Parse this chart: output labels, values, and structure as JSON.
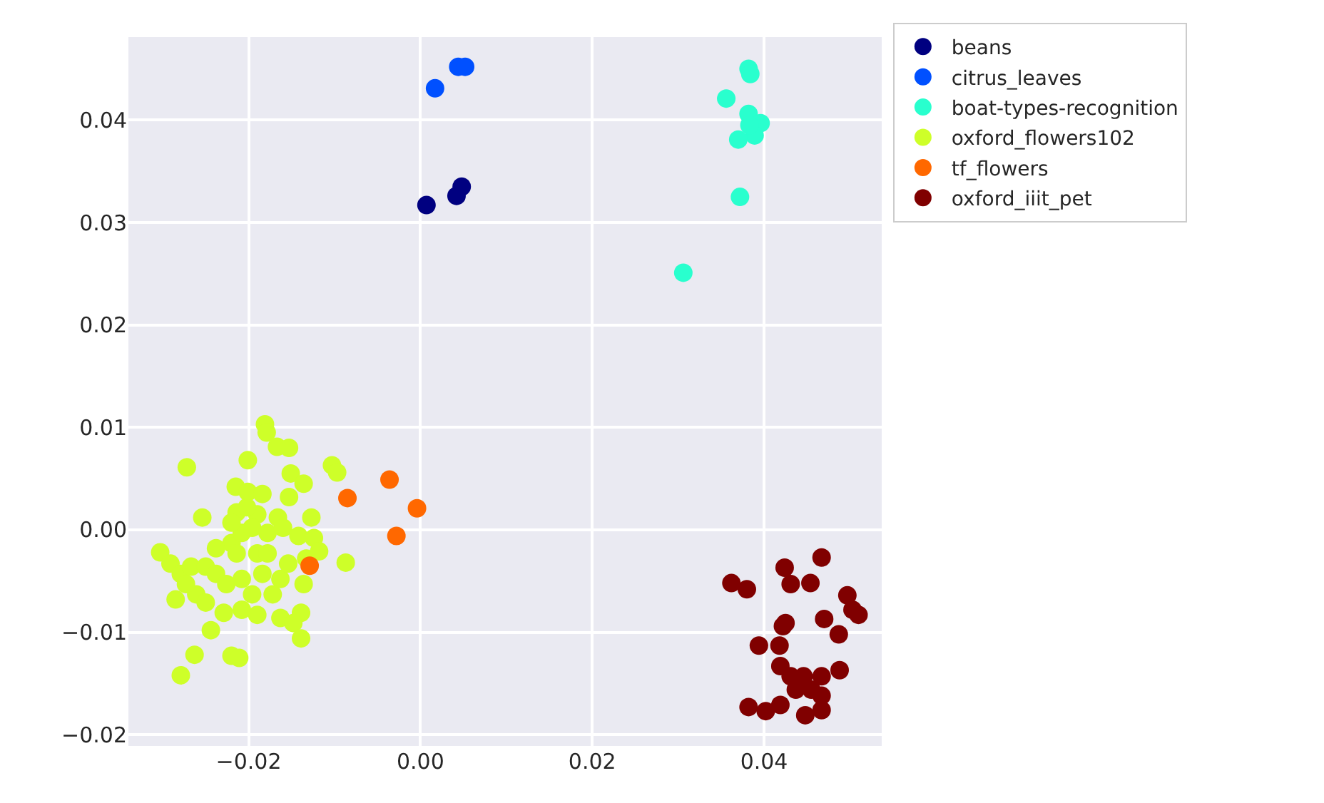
{
  "chart_data": {
    "type": "scatter",
    "xlim": [
      -0.034,
      0.0537
    ],
    "ylim": [
      -0.0211,
      0.0481
    ],
    "xticks": [
      {
        "value": -0.02,
        "label": "−0.02"
      },
      {
        "value": 0,
        "label": "0.00"
      },
      {
        "value": 0.02,
        "label": "0.02"
      },
      {
        "value": 0.04,
        "label": "0.04"
      }
    ],
    "yticks": [
      {
        "value": -0.02,
        "label": "−0.02"
      },
      {
        "value": -0.01,
        "label": "−0.01"
      },
      {
        "value": 0,
        "label": "0.00"
      },
      {
        "value": 0.01,
        "label": "0.01"
      },
      {
        "value": 0.02,
        "label": "0.02"
      },
      {
        "value": 0.03,
        "label": "0.03"
      },
      {
        "value": 0.04,
        "label": "0.04"
      }
    ],
    "grid": true,
    "legend": "top right",
    "marker": "circle",
    "series": [
      {
        "name": "beans",
        "color": "#000080",
        "x": [
          0.0007,
          0.0042,
          0.0048
        ],
        "values": [
          0.0317,
          0.0326,
          0.0335
        ]
      },
      {
        "name": "citrus_leaves",
        "color": "#0050ff",
        "x": [
          0.0017,
          0.0044,
          0.0052
        ],
        "values": [
          0.0431,
          0.0452,
          0.0452
        ]
      },
      {
        "name": "boat-types-recognition",
        "color": "#29ffce",
        "x": [
          0.0382,
          0.0384,
          0.0356,
          0.0382,
          0.0396,
          0.0389,
          0.037,
          0.0372,
          0.0306,
          0.0383
        ],
        "values": [
          0.045,
          0.0445,
          0.0421,
          0.0406,
          0.0397,
          0.0385,
          0.0381,
          0.0325,
          0.0251,
          0.0395
        ]
      },
      {
        "name": "oxford_flowers102",
        "color": "#ceff29",
        "x": [
          -0.0181,
          -0.0179,
          -0.0167,
          -0.0153,
          -0.0201,
          -0.0272,
          -0.0151,
          -0.0103,
          -0.0097,
          -0.0136,
          -0.0215,
          -0.0201,
          -0.0184,
          -0.0153,
          -0.0254,
          -0.0127,
          -0.0214,
          -0.019,
          -0.0166,
          -0.0303,
          -0.0291,
          -0.0279,
          -0.0267,
          -0.025,
          -0.0238,
          -0.022,
          -0.0208,
          -0.0196,
          -0.0178,
          -0.016,
          -0.0142,
          -0.0124,
          -0.0118,
          -0.0133,
          -0.0087,
          -0.0214,
          -0.019,
          -0.0226,
          -0.0208,
          -0.0184,
          -0.0163,
          -0.0136,
          -0.0285,
          -0.0261,
          -0.025,
          -0.0229,
          -0.0208,
          -0.019,
          -0.0163,
          -0.0139,
          -0.0148,
          -0.0244,
          -0.0139,
          -0.0263,
          -0.022,
          -0.0211,
          -0.0279,
          -0.0202,
          -0.022,
          -0.0178,
          -0.0238,
          -0.0273,
          -0.0196,
          -0.0172,
          -0.0154
        ],
        "values": [
          0.0103,
          0.0095,
          0.0081,
          0.008,
          0.0068,
          0.0061,
          0.0055,
          0.0063,
          0.0056,
          0.0045,
          0.0042,
          0.0037,
          0.0035,
          0.0032,
          0.0012,
          0.0012,
          0.0017,
          0.0015,
          0.0012,
          -0.0022,
          -0.0033,
          -0.0043,
          -0.0036,
          -0.0036,
          -0.0043,
          -0.0013,
          -0.0003,
          0.0002,
          -0.0003,
          0.0002,
          -0.0006,
          -0.0008,
          -0.0021,
          -0.0028,
          -0.0032,
          -0.0023,
          -0.0023,
          -0.0053,
          -0.0048,
          -0.0043,
          -0.0048,
          -0.0053,
          -0.0068,
          -0.0063,
          -0.0071,
          -0.0081,
          -0.0078,
          -0.0083,
          -0.0086,
          -0.0081,
          -0.0091,
          -0.0098,
          -0.0106,
          -0.0122,
          -0.0123,
          -0.0125,
          -0.0142,
          0.0022,
          0.0007,
          -0.0023,
          -0.0018,
          -0.0053,
          -0.0063,
          -0.0063,
          -0.0033
        ]
      },
      {
        "name": "tf_flowers",
        "color": "#ff6800",
        "x": [
          -0.0085,
          -0.0036,
          -0.0004,
          -0.0028,
          -0.0129
        ],
        "values": [
          0.0031,
          0.0049,
          0.0021,
          -0.0006,
          -0.0035
        ]
      },
      {
        "name": "oxford_iiit_pet",
        "color": "#800000",
        "x": [
          0.0467,
          0.0424,
          0.0431,
          0.0454,
          0.0362,
          0.038,
          0.0497,
          0.0503,
          0.051,
          0.047,
          0.0487,
          0.0425,
          0.0422,
          0.0394,
          0.0418,
          0.0419,
          0.0431,
          0.0467,
          0.0488,
          0.0455,
          0.0467,
          0.0437,
          0.0382,
          0.0402,
          0.0419,
          0.0448,
          0.0467,
          0.0446
        ],
        "values": [
          -0.0027,
          -0.0037,
          -0.0053,
          -0.0052,
          -0.0052,
          -0.0058,
          -0.0064,
          -0.0078,
          -0.0083,
          -0.0087,
          -0.0102,
          -0.0091,
          -0.0094,
          -0.0113,
          -0.0113,
          -0.0133,
          -0.0143,
          -0.0143,
          -0.0137,
          -0.0156,
          -0.0162,
          -0.0156,
          -0.0173,
          -0.0177,
          -0.0171,
          -0.0181,
          -0.0176,
          -0.0143
        ]
      }
    ]
  }
}
